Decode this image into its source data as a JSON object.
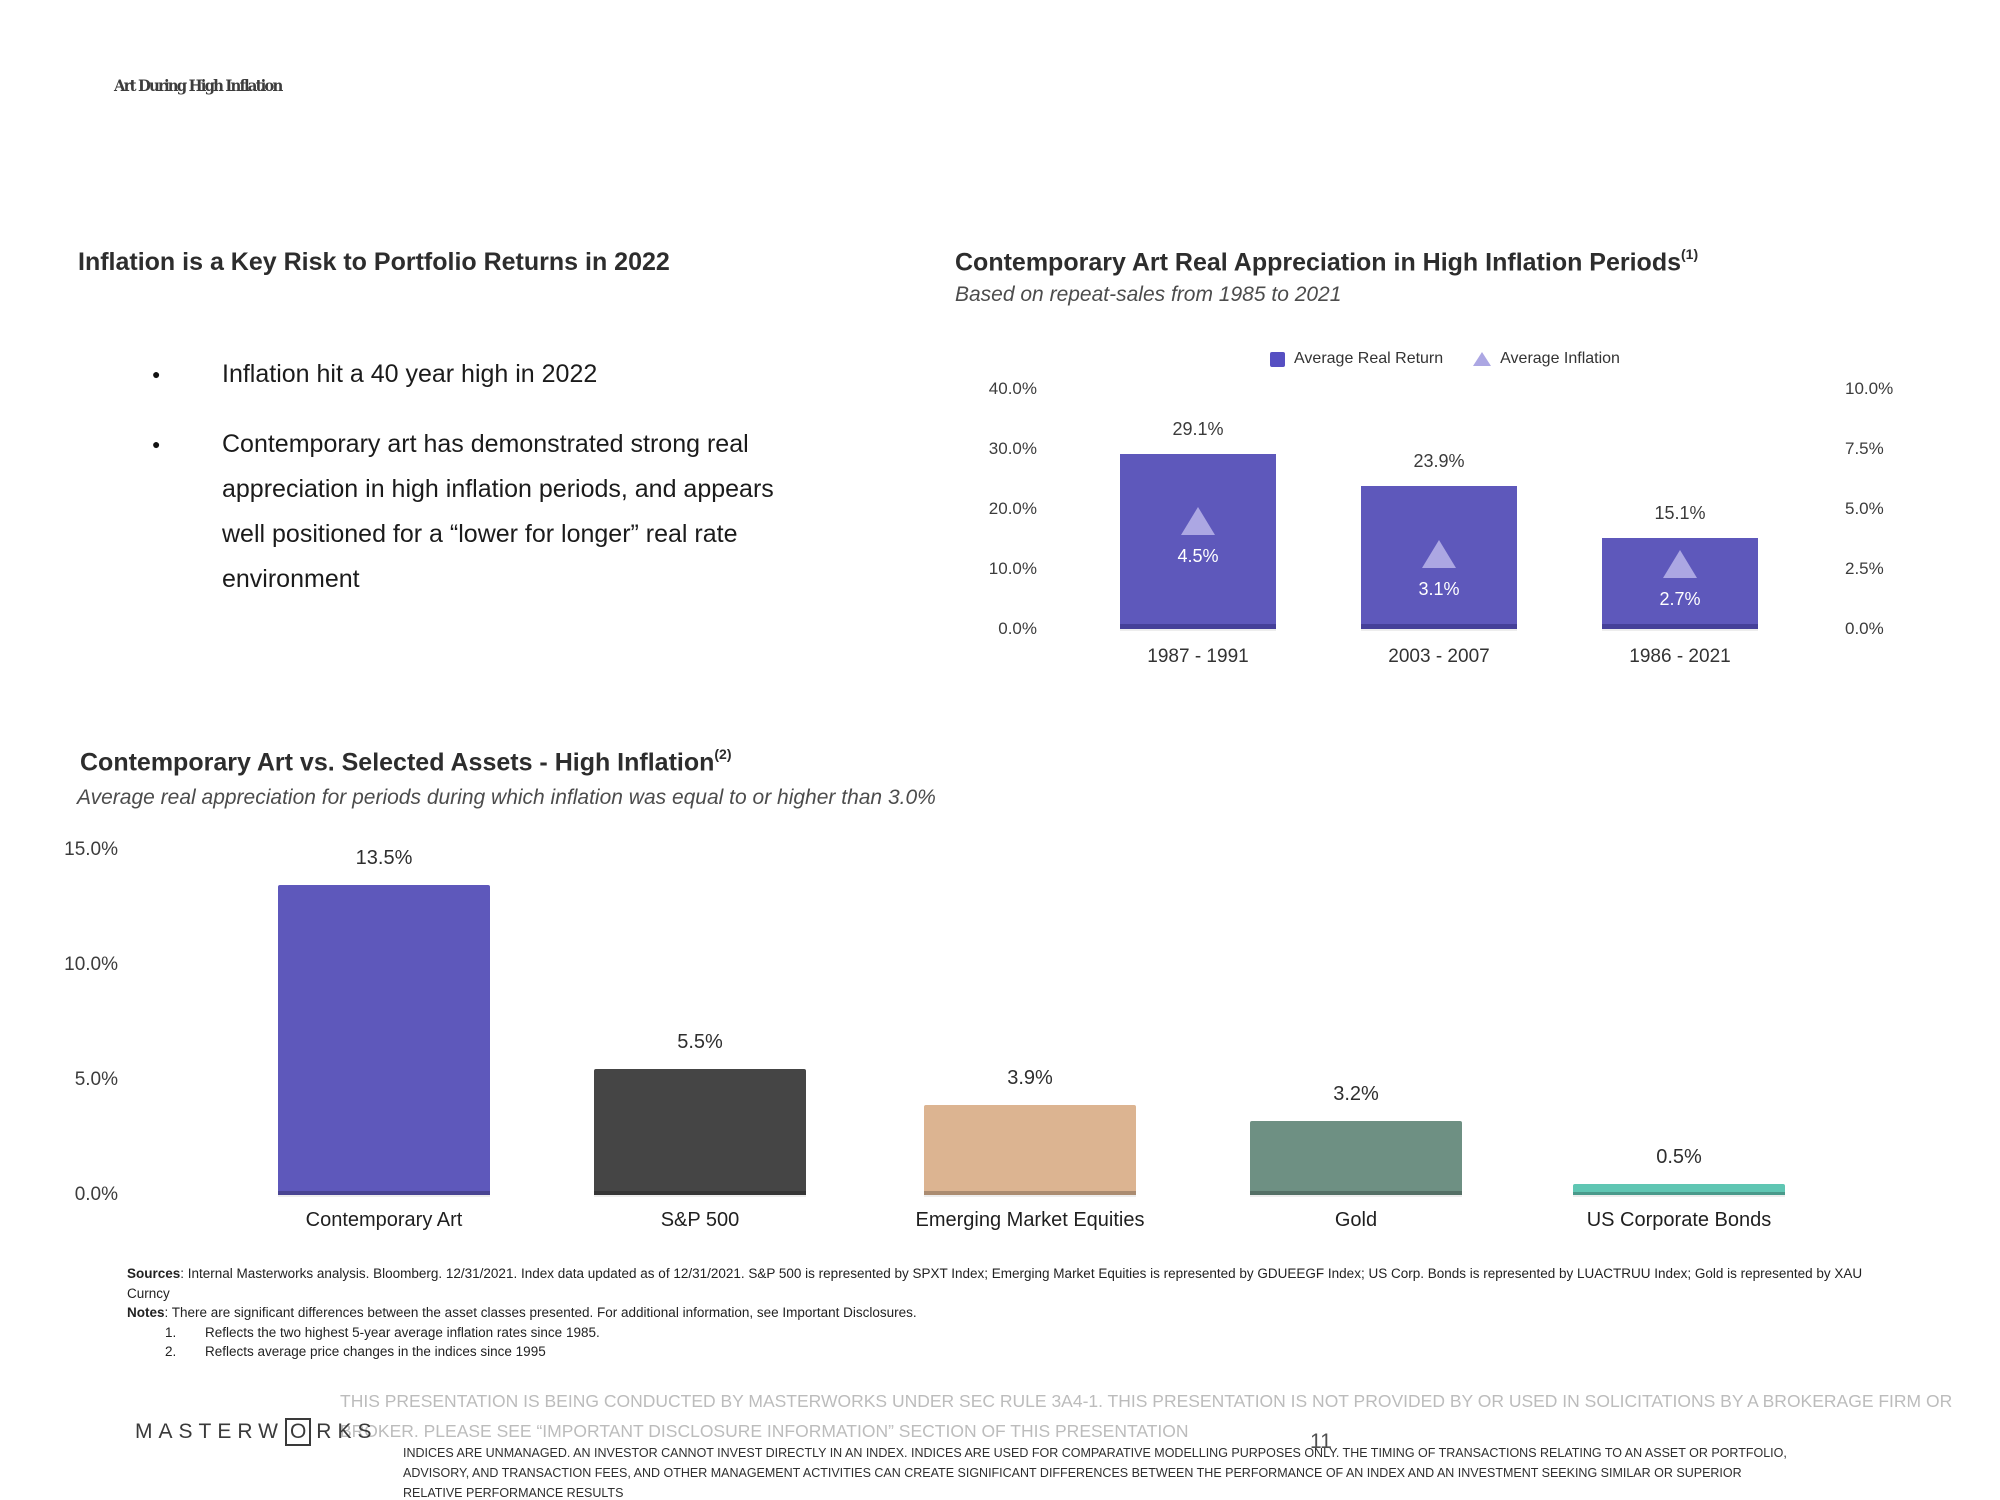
{
  "slide": {
    "title": "Art During High Inflation",
    "page_number": "11"
  },
  "left_panel": {
    "heading": "Inflation is a Key Risk to Portfolio Returns in 2022",
    "bullets": [
      "Inflation hit a 40 year high in 2022",
      "Contemporary art has demonstrated strong real appreciation in high inflation periods, and appears well positioned for a “lower for longer” real rate environment"
    ]
  },
  "chart_data": [
    {
      "type": "bar",
      "title": "Contemporary Art Real Appreciation in High Inflation Periods",
      "footnote_marker": "(1)",
      "subtitle": "Based on repeat-sales from 1985 to 2021",
      "legend_position": "top",
      "legend": [
        {
          "label": "Average Real Return",
          "marker": "square",
          "color": "#564fc2"
        },
        {
          "label": "Average Inflation",
          "marker": "triangle",
          "color": "#aca7e3"
        }
      ],
      "categories": [
        "1987 - 1991",
        "2003 - 2007",
        "1986 - 2021"
      ],
      "series": [
        {
          "name": "Average Real Return",
          "axis": "left",
          "unit": "%",
          "values": [
            29.1,
            23.9,
            15.1
          ],
          "labels": [
            "29.1%",
            "23.9%",
            "15.1%"
          ],
          "color": "#5e58bb"
        },
        {
          "name": "Average Inflation",
          "axis": "right",
          "unit": "%",
          "values": [
            4.5,
            3.1,
            2.7
          ],
          "labels": [
            "4.5%",
            "3.1%",
            "2.7%"
          ],
          "color": "#aca7e3"
        }
      ],
      "left_axis": {
        "range": [
          0,
          40
        ],
        "ticks": [
          "40.0%",
          "30.0%",
          "20.0%",
          "10.0%",
          "0.0%"
        ]
      },
      "right_axis": {
        "range": [
          0,
          10
        ],
        "ticks": [
          "10.0%",
          "7.5%",
          "5.0%",
          "2.5%",
          "0.0%"
        ]
      },
      "grid": false
    },
    {
      "type": "bar",
      "title": "Contemporary Art vs. Selected Assets - High Inflation",
      "footnote_marker": "(2)",
      "subtitle": "Average real appreciation for periods during which inflation was equal to or higher than 3.0%",
      "categories": [
        "Contemporary Art",
        "S&P 500",
        "Emerging Market Equities",
        "Gold",
        "US Corporate Bonds"
      ],
      "values": [
        13.5,
        5.5,
        3.9,
        3.2,
        0.5
      ],
      "labels": [
        "13.5%",
        "5.5%",
        "3.9%",
        "3.2%",
        "0.5%"
      ],
      "bar_colors": [
        "#5e58bb",
        "#454545",
        "#dcb491",
        "#6e9083",
        "#5fc6b3"
      ],
      "yaxis": {
        "range": [
          0,
          15
        ],
        "ticks": [
          "15.0%",
          "10.0%",
          "5.0%",
          "0.0%"
        ]
      },
      "grid": false
    }
  ],
  "footnotes": {
    "sources_label": "Sources",
    "sources_text": ": Internal Masterworks analysis. Bloomberg. 12/31/2021. Index data updated as of 12/31/2021. S&P 500 is represented by SPXT Index; Emerging Market Equities is represented by GDUEEGF Index; US Corp. Bonds is represented by LUACTRUU Index; Gold is represented by XAU Curncy",
    "notes_label": "Notes",
    "notes_text": ": There are significant differences between the asset classes presented. For additional information, see Important Disclosures.",
    "items": [
      {
        "num": "1.",
        "text": "Reflects the two highest 5-year average inflation rates since 1985."
      },
      {
        "num": "2.",
        "text": "Reflects average price changes in the indices since 1995"
      }
    ]
  },
  "footer": {
    "brand_pre": "MASTERW",
    "brand_boxed": "O",
    "brand_post": "RKS",
    "disclaimer": "THIS PRESENTATION IS BEING CONDUCTED BY MASTERWORKS UNDER SEC RULE 3A4-1. THIS PRESENTATION IS NOT PROVIDED BY OR USED IN SOLICITATIONS BY A BROKERAGE FIRM OR BROKER. PLEASE SEE “IMPORTANT DISCLOSURE INFORMATION” SECTION OF THIS PRESENTATION",
    "fine_print": "INDICES ARE UNMANAGED. AN INVESTOR CANNOT INVEST DIRECTLY IN AN INDEX. INDICES ARE USED FOR COMPARATIVE MODELLING PURPOSES ONLY. THE TIMING OF TRANSACTIONS RELATING TO AN ASSET OR PORTFOLIO, ADVISORY, AND TRANSACTION FEES, AND OTHER MANAGEMENT ACTIVITIES CAN CREATE SIGNIFICANT DIFFERENCES BETWEEN THE PERFORMANCE OF AN INDEX AND AN INVESTMENT SEEKING SIMILAR OR SUPERIOR RELATIVE PERFORMANCE RESULTS"
  },
  "colors": {
    "accent_purple": "#5e58bb",
    "triangle_purple": "#aca7e3",
    "charcoal": "#454545",
    "tan": "#dcb491",
    "sage": "#6e9083",
    "teal": "#5fc6b3",
    "title_gray": "#3d3d3d"
  }
}
